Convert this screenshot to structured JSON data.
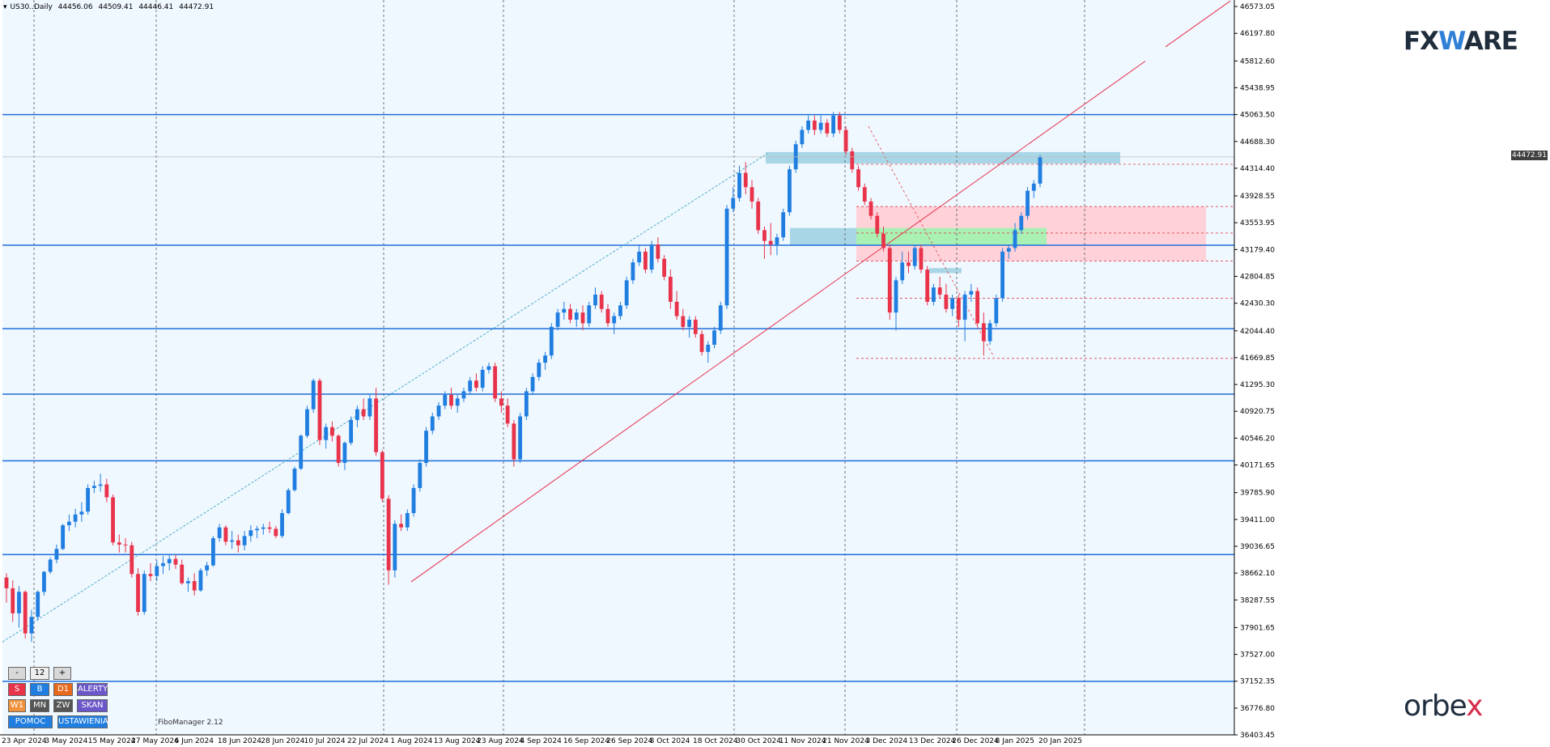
{
  "header": {
    "symbol": "US30..Daily",
    "open": "44456.06",
    "high": "44509.41",
    "low": "44446.41",
    "close": "44472.91"
  },
  "current_price": "44472.91",
  "fibo_manager": "FiboManager 2.12",
  "brand_top": {
    "left": "FX",
    "mid": "W",
    "right": "ARE"
  },
  "brand_bottom": {
    "left": "orbe",
    "mid": "x"
  },
  "panel": {
    "minus": "-",
    "value": "12",
    "plus": "+",
    "buttons": [
      {
        "label": "S",
        "color": "#e8334a"
      },
      {
        "label": "B",
        "color": "#1f7ee0"
      },
      {
        "label": "D1",
        "color": "#e86a1e"
      },
      {
        "label": "ALERTY",
        "color": "#6b57c9"
      },
      {
        "label": "W1",
        "color": "#f0923c"
      },
      {
        "label": "MN",
        "color": "#555555"
      },
      {
        "label": "ZW",
        "color": "#555555"
      },
      {
        "label": "SKAN",
        "color": "#6b57c9"
      },
      {
        "label": "POMOC",
        "color": "#1f7ee0"
      },
      {
        "label": "USTAWIENIA",
        "color": "#1f7ee0"
      }
    ]
  },
  "colors": {
    "background": "#eff7ff",
    "bull": "#1f7ee0",
    "bear": "#e8334a",
    "level_line": "#1e6fd9",
    "trend_line": "#e8334a",
    "fib_line": "#e0444a",
    "pink_zone": "#ffd1d9",
    "green_zone": "#a8f0b4",
    "blue_zone": "#a9d6e6"
  },
  "chart_data": {
    "type": "candlestick",
    "y_axis": {
      "min": 36403.45,
      "max": 46573.05,
      "ticks": [
        "46573.05",
        "46197.80",
        "45812.60",
        "45438.95",
        "45063.50",
        "44688.30",
        "44314.40",
        "43928.55",
        "43553.95",
        "43179.40",
        "42804.85",
        "42430.30",
        "42044.40",
        "41669.85",
        "41295.30",
        "40920.75",
        "40546.20",
        "40171.65",
        "39785.90",
        "39411.00",
        "39036.65",
        "38662.10",
        "38287.55",
        "37901.65",
        "37527.00",
        "37152.35",
        "36776.80",
        "36403.45"
      ]
    },
    "x_labels": [
      "23 Apr 2024",
      "3 May 2024",
      "15 May 2024",
      "27 May 2024",
      "6 Jun 2024",
      "18 Jun 2024",
      "28 Jun 2024",
      "10 Jul 2024",
      "22 Jul 2024",
      "1 Aug 2024",
      "13 Aug 2024",
      "23 Aug 2024",
      "4 Sep 2024",
      "16 Sep 2024",
      "26 Sep 2024",
      "8 Oct 2024",
      "18 Oct 2024",
      "30 Oct 2024",
      "11 Nov 2024",
      "21 Nov 2024",
      "3 Dec 2024",
      "13 Dec 2024",
      "26 Dec 2024",
      "8 Jan 2025",
      "20 Jan 2025"
    ],
    "candles": [
      [
        38600,
        38660,
        38250,
        38450
      ],
      [
        38450,
        38560,
        37980,
        38100
      ],
      [
        38100,
        38480,
        37900,
        38400
      ],
      [
        38400,
        38420,
        37750,
        37820
      ],
      [
        37820,
        38150,
        37700,
        38050
      ],
      [
        38050,
        38420,
        38000,
        38400
      ],
      [
        38400,
        38690,
        38350,
        38680
      ],
      [
        38680,
        38880,
        38650,
        38850
      ],
      [
        38850,
        39060,
        38800,
        39000
      ],
      [
        39000,
        39350,
        38980,
        39330
      ],
      [
        39330,
        39480,
        39250,
        39380
      ],
      [
        39380,
        39560,
        39300,
        39480
      ],
      [
        39480,
        39650,
        39380,
        39520
      ],
      [
        39520,
        39900,
        39480,
        39850
      ],
      [
        39850,
        39950,
        39780,
        39880
      ],
      [
        39880,
        40050,
        39800,
        39900
      ],
      [
        39900,
        39980,
        39650,
        39720
      ],
      [
        39720,
        39760,
        39050,
        39090
      ],
      [
        39090,
        39200,
        38950,
        39060
      ],
      [
        39060,
        39150,
        38950,
        39050
      ],
      [
        39050,
        39100,
        38600,
        38650
      ],
      [
        38650,
        38730,
        38070,
        38120
      ],
      [
        38120,
        38700,
        38080,
        38650
      ],
      [
        38650,
        38800,
        38550,
        38620
      ],
      [
        38620,
        38840,
        38550,
        38760
      ],
      [
        38760,
        38900,
        38650,
        38800
      ],
      [
        38800,
        38930,
        38700,
        38860
      ],
      [
        38860,
        38920,
        38720,
        38780
      ],
      [
        38780,
        38850,
        38500,
        38520
      ],
      [
        38520,
        38600,
        38400,
        38550
      ],
      [
        38550,
        38660,
        38350,
        38420
      ],
      [
        38420,
        38730,
        38400,
        38700
      ],
      [
        38700,
        38820,
        38620,
        38770
      ],
      [
        38770,
        39180,
        38750,
        39150
      ],
      [
        39150,
        39350,
        39100,
        39300
      ],
      [
        39300,
        39330,
        39050,
        39100
      ],
      [
        39100,
        39250,
        39000,
        39120
      ],
      [
        39120,
        39200,
        38950,
        39050
      ],
      [
        39050,
        39250,
        38980,
        39180
      ],
      [
        39180,
        39330,
        39100,
        39260
      ],
      [
        39260,
        39320,
        39150,
        39280
      ],
      [
        39280,
        39350,
        39200,
        39300
      ],
      [
        39300,
        39380,
        39220,
        39280
      ],
      [
        39280,
        39320,
        39150,
        39180
      ],
      [
        39180,
        39550,
        39150,
        39500
      ],
      [
        39500,
        39850,
        39480,
        39820
      ],
      [
        39820,
        40150,
        39800,
        40120
      ],
      [
        40120,
        40600,
        40100,
        40580
      ],
      [
        40580,
        41000,
        40550,
        40950
      ],
      [
        40950,
        41380,
        40900,
        41350
      ],
      [
        41350,
        41380,
        40450,
        40520
      ],
      [
        40520,
        40750,
        40400,
        40700
      ],
      [
        40700,
        40780,
        40500,
        40580
      ],
      [
        40580,
        40600,
        40150,
        40200
      ],
      [
        40200,
        40500,
        40100,
        40480
      ],
      [
        40480,
        40850,
        40450,
        40800
      ],
      [
        40800,
        41000,
        40700,
        40950
      ],
      [
        40950,
        41100,
        40800,
        40850
      ],
      [
        40850,
        41150,
        40800,
        41100
      ],
      [
        41100,
        41250,
        40300,
        40350
      ],
      [
        40350,
        40380,
        39650,
        39700
      ],
      [
        39700,
        39750,
        38500,
        38700
      ],
      [
        38700,
        39400,
        38600,
        39350
      ],
      [
        39350,
        39480,
        39250,
        39300
      ],
      [
        39300,
        39550,
        39250,
        39500
      ],
      [
        39500,
        39900,
        39450,
        39850
      ],
      [
        39850,
        40250,
        39800,
        40200
      ],
      [
        40200,
        40700,
        40150,
        40650
      ],
      [
        40650,
        40900,
        40600,
        40850
      ],
      [
        40850,
        41050,
        40800,
        41000
      ],
      [
        41000,
        41200,
        40950,
        41150
      ],
      [
        41150,
        41250,
        40950,
        41000
      ],
      [
        41000,
        41150,
        40900,
        41100
      ],
      [
        41100,
        41250,
        41050,
        41200
      ],
      [
        41200,
        41400,
        41150,
        41350
      ],
      [
        41350,
        41450,
        41200,
        41250
      ],
      [
        41250,
        41550,
        41200,
        41500
      ],
      [
        41500,
        41600,
        41450,
        41550
      ],
      [
        41550,
        41600,
        41050,
        41100
      ],
      [
        41100,
        41200,
        40900,
        41000
      ],
      [
        41000,
        41100,
        40700,
        40750
      ],
      [
        40750,
        40800,
        40150,
        40250
      ],
      [
        40250,
        40900,
        40200,
        40850
      ],
      [
        40850,
        41250,
        40800,
        41200
      ],
      [
        41200,
        41450,
        41150,
        41400
      ],
      [
        41400,
        41650,
        41350,
        41600
      ],
      [
        41600,
        41750,
        41500,
        41700
      ],
      [
        41700,
        42150,
        41650,
        42100
      ],
      [
        42100,
        42350,
        42050,
        42300
      ],
      [
        42300,
        42450,
        42200,
        42350
      ],
      [
        42350,
        42420,
        42150,
        42200
      ],
      [
        42200,
        42350,
        42100,
        42300
      ],
      [
        42300,
        42400,
        42050,
        42150
      ],
      [
        42150,
        42450,
        42100,
        42400
      ],
      [
        42400,
        42650,
        42350,
        42550
      ],
      [
        42550,
        42600,
        42300,
        42350
      ],
      [
        42350,
        42420,
        42100,
        42150
      ],
      [
        42150,
        42300,
        42000,
        42250
      ],
      [
        42250,
        42450,
        42200,
        42400
      ],
      [
        42400,
        42800,
        42350,
        42750
      ],
      [
        42750,
        43050,
        42700,
        43000
      ],
      [
        43000,
        43250,
        42950,
        43150
      ],
      [
        43150,
        43200,
        42850,
        42900
      ],
      [
        42900,
        43300,
        42850,
        43250
      ],
      [
        43250,
        43350,
        43000,
        43050
      ],
      [
        43050,
        43100,
        42750,
        42800
      ],
      [
        42800,
        42900,
        42350,
        42450
      ],
      [
        42450,
        42600,
        42200,
        42250
      ],
      [
        42250,
        42350,
        42050,
        42100
      ],
      [
        42100,
        42250,
        41950,
        42200
      ],
      [
        42200,
        42250,
        41950,
        42000
      ],
      [
        42000,
        42050,
        41700,
        41750
      ],
      [
        41750,
        41900,
        41600,
        41850
      ],
      [
        41850,
        42100,
        41800,
        42050
      ],
      [
        42050,
        42450,
        42000,
        42400
      ],
      [
        42400,
        43800,
        42350,
        43750
      ],
      [
        43750,
        44050,
        43700,
        43900
      ],
      [
        43900,
        44350,
        43850,
        44250
      ],
      [
        44250,
        44400,
        43950,
        44050
      ],
      [
        44050,
        44150,
        43750,
        43850
      ],
      [
        43850,
        43900,
        43400,
        43450
      ],
      [
        43450,
        43500,
        43050,
        43300
      ],
      [
        43300,
        43550,
        43100,
        43250
      ],
      [
        43250,
        43400,
        43100,
        43350
      ],
      [
        43350,
        43750,
        43300,
        43700
      ],
      [
        43700,
        44350,
        43650,
        44300
      ],
      [
        44300,
        44700,
        44250,
        44650
      ],
      [
        44650,
        44900,
        44600,
        44850
      ],
      [
        44850,
        45050,
        44800,
        44980
      ],
      [
        44980,
        45050,
        44780,
        44850
      ],
      [
        44850,
        45050,
        44800,
        44950
      ],
      [
        44950,
        45000,
        44750,
        44800
      ],
      [
        44800,
        45100,
        44750,
        45050
      ],
      [
        45050,
        45100,
        44800,
        44850
      ],
      [
        44850,
        44900,
        44500,
        44550
      ],
      [
        44550,
        44600,
        44250,
        44300
      ],
      [
        44300,
        44350,
        44000,
        44050
      ],
      [
        44050,
        44100,
        43800,
        43850
      ],
      [
        43850,
        43900,
        43600,
        43650
      ],
      [
        43650,
        43700,
        43350,
        43400
      ],
      [
        43400,
        43500,
        43150,
        43200
      ],
      [
        43200,
        43250,
        42200,
        42300
      ],
      [
        42300,
        42800,
        42050,
        42750
      ],
      [
        42750,
        43150,
        42700,
        43000
      ],
      [
        43000,
        43150,
        42850,
        42950
      ],
      [
        42950,
        43250,
        42900,
        43200
      ],
      [
        43200,
        43250,
        42850,
        42900
      ],
      [
        42900,
        42950,
        42400,
        42450
      ],
      [
        42450,
        42700,
        42400,
        42650
      ],
      [
        42650,
        42800,
        42500,
        42550
      ],
      [
        42550,
        42700,
        42300,
        42350
      ],
      [
        42350,
        42550,
        42250,
        42500
      ],
      [
        42500,
        42550,
        42100,
        42200
      ],
      [
        42200,
        42600,
        41900,
        42550
      ],
      [
        42550,
        42700,
        42450,
        42600
      ],
      [
        42600,
        42650,
        42100,
        42150
      ],
      [
        42150,
        42300,
        41700,
        41900
      ],
      [
        41900,
        42200,
        41850,
        42150
      ],
      [
        42150,
        42550,
        42100,
        42500
      ],
      [
        42500,
        43200,
        42450,
        43150
      ],
      [
        43150,
        43250,
        43050,
        43200
      ],
      [
        43200,
        43550,
        43150,
        43450
      ],
      [
        43450,
        43700,
        43400,
        43650
      ],
      [
        43650,
        44050,
        43600,
        44000
      ],
      [
        44000,
        44150,
        43900,
        44100
      ],
      [
        44100,
        44500,
        44050,
        44470
      ]
    ]
  }
}
